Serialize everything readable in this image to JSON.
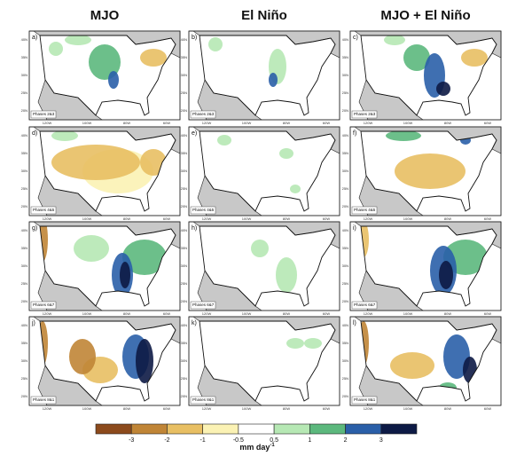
{
  "columns": [
    "MJO",
    "El Niño",
    "MJO + El Niño"
  ],
  "rows": [
    {
      "phases": "Phases 2&3",
      "labels": [
        "a)",
        "b)",
        "c)"
      ]
    },
    {
      "phases": "Phases 4&5",
      "labels": [
        "d)",
        "e)",
        "f)"
      ]
    },
    {
      "phases": "Phases 6&7",
      "labels": [
        "g)",
        "h)",
        "i)"
      ]
    },
    {
      "phases": "Phases 8&1",
      "labels": [
        "j)",
        "k)",
        "l)"
      ]
    }
  ],
  "lat_ticks": [
    "40N",
    "35N",
    "30N",
    "25N",
    "20N"
  ],
  "lon_ticks": [
    "120W",
    "100W",
    "80W",
    "60W"
  ],
  "colorbar": {
    "ticks": [
      -3,
      -2,
      -1,
      -0.5,
      0.5,
      1,
      2,
      3
    ],
    "colors": [
      "#8c4a1c",
      "#c08536",
      "#e8bf63",
      "#fbf2b4",
      "#ffffff",
      "#b6e8b4",
      "#5cb87d",
      "#2a5fa8",
      "#0d1a45"
    ],
    "unit": "mm day",
    "unit_exponent": "-1"
  }
}
